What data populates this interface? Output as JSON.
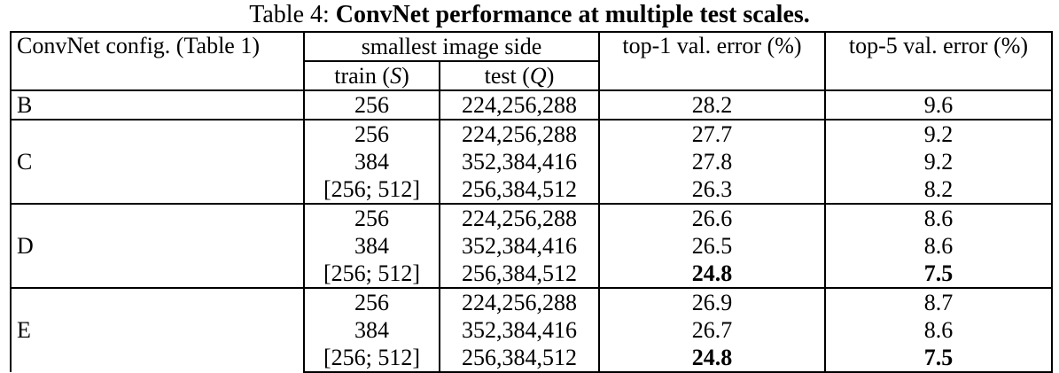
{
  "caption": {
    "prefix": "Table 4: ",
    "title": "ConvNet performance at multiple test scales."
  },
  "header": {
    "config": "ConvNet config. (Table 1)",
    "scale_group": "smallest image side",
    "train_label": "train (",
    "train_sym": "S",
    "train_close": ")",
    "test_label": "test (",
    "test_sym": "Q",
    "test_close": ")",
    "top1": "top-1 val. error (%)",
    "top5": "top-5 val. error (%)"
  },
  "groups": [
    {
      "config": "B",
      "rows": [
        {
          "train": "256",
          "test": "224,256,288",
          "top1": "28.2",
          "top5": "9.6"
        }
      ]
    },
    {
      "config": "C",
      "rows": [
        {
          "train": "256",
          "test": "224,256,288",
          "top1": "27.7",
          "top5": "9.2"
        },
        {
          "train": "384",
          "test": "352,384,416",
          "top1": "27.8",
          "top5": "9.2"
        },
        {
          "train": "[256; 512]",
          "test": "256,384,512",
          "top1": "26.3",
          "top5": "8.2"
        }
      ]
    },
    {
      "config": "D",
      "rows": [
        {
          "train": "256",
          "test": "224,256,288",
          "top1": "26.6",
          "top5": "8.6"
        },
        {
          "train": "384",
          "test": "352,384,416",
          "top1": "26.5",
          "top5": "8.6"
        },
        {
          "train": "[256; 512]",
          "test": "256,384,512",
          "top1": "24.8",
          "top5": "7.5"
        }
      ]
    },
    {
      "config": "E",
      "rows": [
        {
          "train": "256",
          "test": "224,256,288",
          "top1": "26.9",
          "top5": "8.7"
        },
        {
          "train": "384",
          "test": "352,384,416",
          "top1": "26.7",
          "top5": "8.6"
        },
        {
          "train": "[256; 512]",
          "test": "256,384,512",
          "top1": "24.8",
          "top5": "7.5"
        }
      ]
    }
  ]
}
